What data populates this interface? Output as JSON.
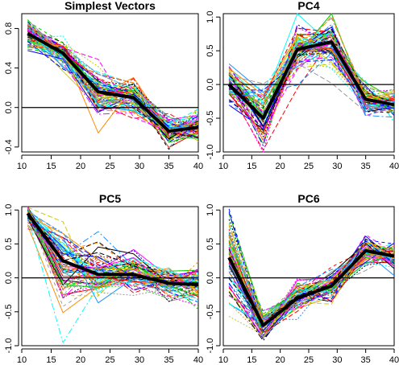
{
  "chart_data": [
    {
      "type": "line",
      "title": "Simplest Vectors",
      "x": [
        11,
        17,
        23,
        29,
        35,
        40
      ],
      "xticks": [
        10,
        15,
        20,
        25,
        30,
        35,
        40
      ],
      "xlim": [
        10,
        40
      ],
      "yticks": [
        -0.4,
        0.0,
        0.4,
        0.8
      ],
      "ytick_labels": [
        "-0.4",
        "0.0",
        "0.4",
        "0.8"
      ],
      "ylim": [
        -0.45,
        0.95
      ],
      "zero_line": 0.0,
      "mean_values": [
        0.75,
        0.55,
        0.16,
        0.1,
        -0.24,
        -0.2
      ],
      "spread": [
        0.08,
        0.07,
        0.12,
        0.1,
        0.08,
        0.08
      ]
    },
    {
      "type": "line",
      "title": "PC4",
      "x": [
        11,
        17,
        23,
        29,
        35,
        40
      ],
      "xticks": [
        10,
        15,
        20,
        25,
        30,
        35,
        40
      ],
      "xlim": [
        10,
        40
      ],
      "yticks": [
        -1.0,
        -0.5,
        0.0,
        0.5,
        1.0
      ],
      "ytick_labels": [
        "-1.0",
        "-0.5",
        "0.0",
        "0.5",
        "1.0"
      ],
      "ylim": [
        -1.0,
        1.05
      ],
      "zero_line": 0.0,
      "mean_values": [
        0.0,
        -0.5,
        0.52,
        0.63,
        -0.22,
        -0.3
      ],
      "spread": [
        0.15,
        0.22,
        0.2,
        0.18,
        0.12,
        0.1
      ]
    },
    {
      "type": "line",
      "title": "PC5",
      "x": [
        11,
        17,
        23,
        29,
        35,
        40
      ],
      "xticks": [
        10,
        15,
        20,
        25,
        30,
        35,
        40
      ],
      "xlim": [
        10,
        40
      ],
      "yticks": [
        -1.0,
        -0.5,
        0.0,
        0.5,
        1.0
      ],
      "ytick_labels": [
        "-1.0",
        "-0.5",
        "0.0",
        "0.5",
        "1.0"
      ],
      "ylim": [
        -1.0,
        1.05
      ],
      "zero_line": 0.0,
      "mean_values": [
        0.95,
        0.25,
        0.05,
        0.05,
        -0.08,
        -0.1
      ],
      "spread": [
        0.08,
        0.3,
        0.2,
        0.15,
        0.12,
        0.15
      ]
    },
    {
      "type": "line",
      "title": "PC6",
      "x": [
        11,
        17,
        23,
        29,
        35,
        40
      ],
      "xticks": [
        10,
        15,
        20,
        25,
        30,
        35,
        40
      ],
      "xlim": [
        10,
        40
      ],
      "yticks": [
        -1.0,
        -0.5,
        0.0,
        0.5,
        1.0
      ],
      "ytick_labels": [
        "-1.0",
        "-0.5",
        "0.0",
        "0.5",
        "1.0"
      ],
      "ylim": [
        -1.0,
        1.05
      ],
      "zero_line": 0.0,
      "mean_values": [
        0.3,
        -0.7,
        -0.3,
        -0.12,
        0.4,
        0.32
      ],
      "spread": [
        0.35,
        0.12,
        0.12,
        0.12,
        0.1,
        0.1
      ]
    }
  ],
  "series_colors": [
    "#000000",
    "#ff0000",
    "#00cd00",
    "#0000ff",
    "#00ffff",
    "#ff00ff",
    "#cccc00",
    "#999999",
    "#ff8c00",
    "#1e90ff"
  ],
  "mean_color": "#000000"
}
